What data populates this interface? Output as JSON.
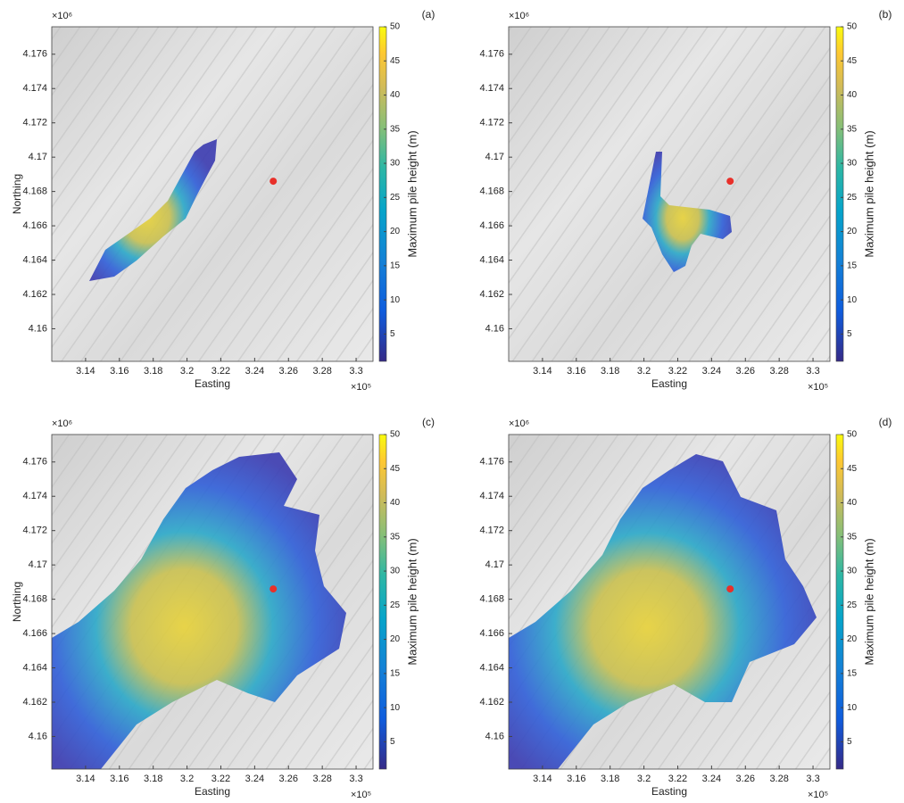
{
  "chart_data": [
    {
      "type": "map",
      "panel_label": "(a)",
      "xlabel": "Easting",
      "ylabel": "Northing",
      "colorbar_label": "Maximum pile height (m)",
      "x_multiplier": "×10⁵",
      "y_multiplier": "×10⁶",
      "xlim": [
        3.12,
        3.31
      ],
      "xticks": [
        3.14,
        3.16,
        3.18,
        3.2,
        3.22,
        3.24,
        3.26,
        3.28,
        3.3
      ],
      "ylim": [
        4.1581,
        4.1776
      ],
      "yticks": [
        4.16,
        4.162,
        4.164,
        4.166,
        4.168,
        4.17,
        4.172,
        4.174,
        4.176
      ],
      "clim": [
        1,
        50
      ],
      "cticks": [
        5,
        10,
        15,
        20,
        25,
        30,
        35,
        40,
        45,
        50
      ],
      "marker": {
        "x": 3.251,
        "y": 4.1686,
        "color": "#e8302a"
      }
    },
    {
      "type": "map",
      "panel_label": "(b)",
      "xlabel": "Easting",
      "colorbar_label": "Maximum pile height (m)",
      "x_multiplier": "×10⁵",
      "y_multiplier": "×10⁶",
      "xlim": [
        3.12,
        3.31
      ],
      "xticks": [
        3.14,
        3.16,
        3.18,
        3.2,
        3.22,
        3.24,
        3.26,
        3.28,
        3.3
      ],
      "ylim": [
        4.1581,
        4.1776
      ],
      "yticks": [
        4.16,
        4.162,
        4.164,
        4.166,
        4.168,
        4.17,
        4.172,
        4.174,
        4.176
      ],
      "clim": [
        1,
        50
      ],
      "cticks": [
        5,
        10,
        15,
        20,
        25,
        30,
        35,
        40,
        45,
        50
      ],
      "marker": {
        "x": 3.251,
        "y": 4.1686,
        "color": "#e8302a"
      }
    },
    {
      "type": "map",
      "panel_label": "(c)",
      "xlabel": "Easting",
      "ylabel": "Northing",
      "colorbar_label": "Maximum pile height (m)",
      "x_multiplier": "×10⁵",
      "y_multiplier": "×10⁶",
      "xlim": [
        3.12,
        3.31
      ],
      "xticks": [
        3.14,
        3.16,
        3.18,
        3.2,
        3.22,
        3.24,
        3.26,
        3.28,
        3.3
      ],
      "ylim": [
        4.1581,
        4.1776
      ],
      "yticks": [
        4.16,
        4.162,
        4.164,
        4.166,
        4.168,
        4.17,
        4.172,
        4.174,
        4.176
      ],
      "clim": [
        1,
        50
      ],
      "cticks": [
        5,
        10,
        15,
        20,
        25,
        30,
        35,
        40,
        45,
        50
      ],
      "marker": {
        "x": 3.251,
        "y": 4.1686,
        "color": "#e8302a"
      }
    },
    {
      "type": "map",
      "panel_label": "(d)",
      "xlabel": "Easting",
      "colorbar_label": "Maximum pile height (m)",
      "x_multiplier": "×10⁵",
      "y_multiplier": "×10⁶",
      "xlim": [
        3.12,
        3.31
      ],
      "xticks": [
        3.14,
        3.16,
        3.18,
        3.2,
        3.22,
        3.24,
        3.26,
        3.28,
        3.3
      ],
      "ylim": [
        4.1581,
        4.1776
      ],
      "yticks": [
        4.16,
        4.162,
        4.164,
        4.166,
        4.168,
        4.17,
        4.172,
        4.174,
        4.176
      ],
      "clim": [
        1,
        50
      ],
      "cticks": [
        5,
        10,
        15,
        20,
        25,
        30,
        35,
        40,
        45,
        50
      ],
      "marker": {
        "x": 3.251,
        "y": 4.1686,
        "color": "#e8302a"
      }
    }
  ]
}
